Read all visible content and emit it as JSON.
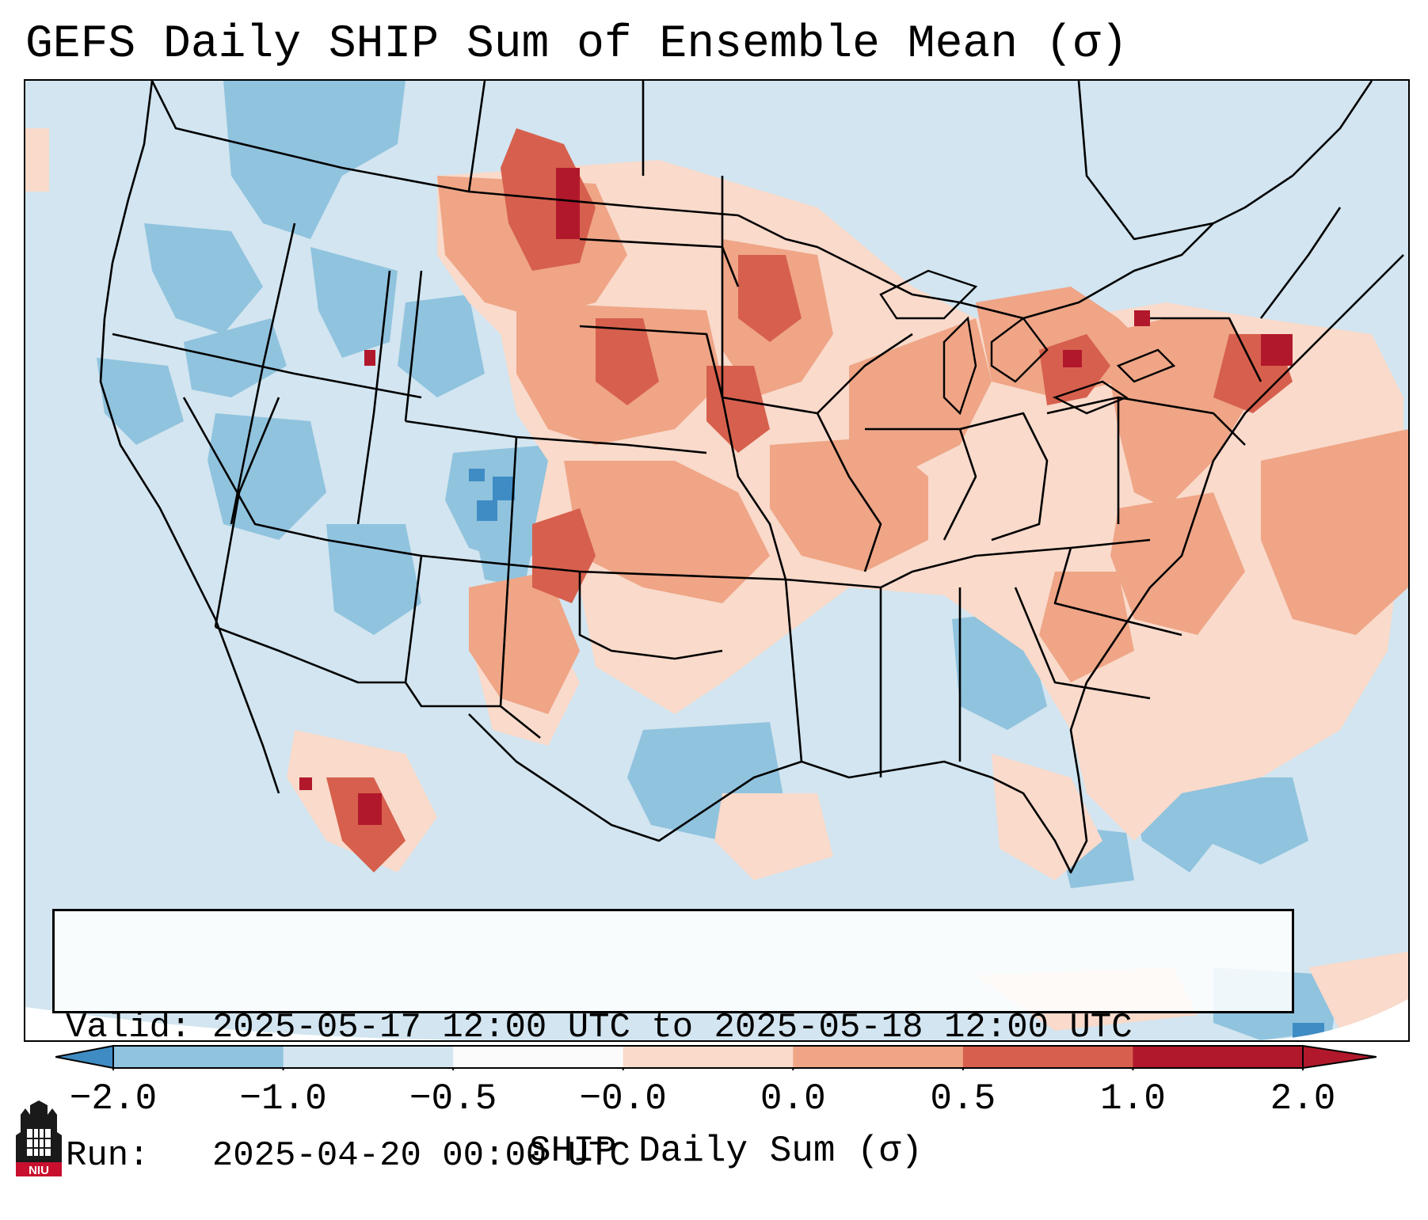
{
  "title": "GEFS Daily SHIP Sum of Ensemble Mean (σ)",
  "info": {
    "valid_line": "Valid: 2025-05-17 12:00 UTC to 2025-05-18 12:00 UTC",
    "run_line": "Run:   2025-04-20 00:00 UTC"
  },
  "colorbar": {
    "label": "SHIP Daily Sum (σ)",
    "ticks": [
      "−2.0",
      "−1.0",
      "−0.5",
      "−0.0",
      "0.0",
      "0.5",
      "1.0",
      "2.0"
    ],
    "colors": [
      "#3f8cc4",
      "#90c3de",
      "#d2e5f0",
      "#fbfbfb",
      "#f9dacb",
      "#efa586",
      "#d6604d",
      "#b2182b"
    ],
    "extend": "both"
  },
  "logo": {
    "text": "NIU",
    "icon": "niu-tower-logo-icon"
  },
  "map": {
    "region": "Contiguous United States",
    "field": "SHIP daily sum anomaly",
    "background_colors": {
      "neutral_negative": "#d2e5f0",
      "moderate_negative": "#90c3de",
      "strong_negative": "#3f8cc4",
      "weak_positive": "#f9dacb",
      "moderate_positive": "#efa586",
      "strong_positive": "#d6604d",
      "very_strong_positive": "#b2182b"
    }
  }
}
